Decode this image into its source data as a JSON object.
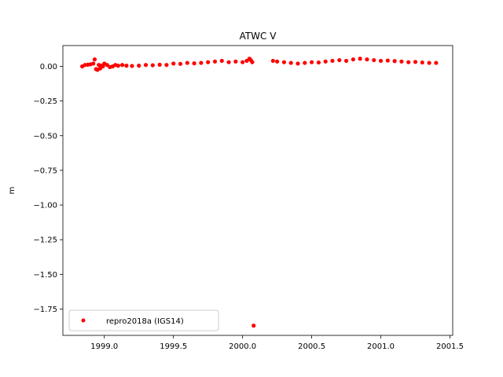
{
  "chart_data": {
    "type": "scatter",
    "title": "ATWC V",
    "xlabel": "",
    "ylabel": "m",
    "xlim": [
      1998.7,
      2001.52
    ],
    "ylim": [
      -1.94,
      0.15
    ],
    "xticks": [
      1999.0,
      1999.5,
      2000.0,
      2000.5,
      2001.0,
      2001.5
    ],
    "xtick_labels": [
      "1999.0",
      "1999.5",
      "2000.0",
      "2000.5",
      "2001.0",
      "2001.5"
    ],
    "yticks": [
      0.0,
      -0.25,
      -0.5,
      -0.75,
      -1.0,
      -1.25,
      -1.5,
      -1.75
    ],
    "ytick_labels": [
      "0.00",
      "−0.25",
      "−0.50",
      "−0.75",
      "−1.00",
      "−1.25",
      "−1.50",
      "−1.75"
    ],
    "grid": false,
    "legend_position": "lower-left",
    "series": [
      {
        "name": "repro2018a (IGS14)",
        "color": "#ff0000",
        "marker": "circle",
        "x": [
          1998.84,
          1998.86,
          1998.88,
          1998.9,
          1998.92,
          1998.93,
          1998.94,
          1998.95,
          1998.96,
          1998.97,
          1998.98,
          1998.99,
          1999.0,
          1999.02,
          1999.04,
          1999.06,
          1999.08,
          1999.1,
          1999.13,
          1999.16,
          1999.2,
          1999.25,
          1999.3,
          1999.35,
          1999.4,
          1999.45,
          1999.5,
          1999.55,
          1999.6,
          1999.65,
          1999.7,
          1999.75,
          1999.8,
          1999.85,
          1999.9,
          1999.95,
          2000.0,
          2000.03,
          2000.05,
          2000.06,
          2000.07,
          2000.08,
          2000.22,
          2000.25,
          2000.3,
          2000.35,
          2000.4,
          2000.45,
          2000.5,
          2000.55,
          2000.6,
          2000.65,
          2000.7,
          2000.75,
          2000.8,
          2000.85,
          2000.9,
          2000.95,
          2001.0,
          2001.05,
          2001.1,
          2001.15,
          2001.2,
          2001.25,
          2001.3,
          2001.35,
          2001.4
        ],
        "y": [
          0.0,
          0.01,
          0.012,
          0.015,
          0.02,
          0.05,
          -0.02,
          -0.025,
          0.01,
          -0.015,
          0.005,
          0.0,
          0.02,
          0.01,
          -0.005,
          0.0,
          0.01,
          0.005,
          0.01,
          0.005,
          0.003,
          0.005,
          0.01,
          0.008,
          0.012,
          0.01,
          0.02,
          0.018,
          0.025,
          0.022,
          0.025,
          0.03,
          0.035,
          0.04,
          0.03,
          0.035,
          0.03,
          0.04,
          0.055,
          0.045,
          0.03,
          -1.87,
          0.04,
          0.035,
          0.03,
          0.025,
          0.02,
          0.025,
          0.03,
          0.028,
          0.035,
          0.04,
          0.045,
          0.04,
          0.05,
          0.055,
          0.05,
          0.045,
          0.04,
          0.042,
          0.038,
          0.035,
          0.03,
          0.032,
          0.028,
          0.025,
          0.025
        ]
      }
    ]
  }
}
